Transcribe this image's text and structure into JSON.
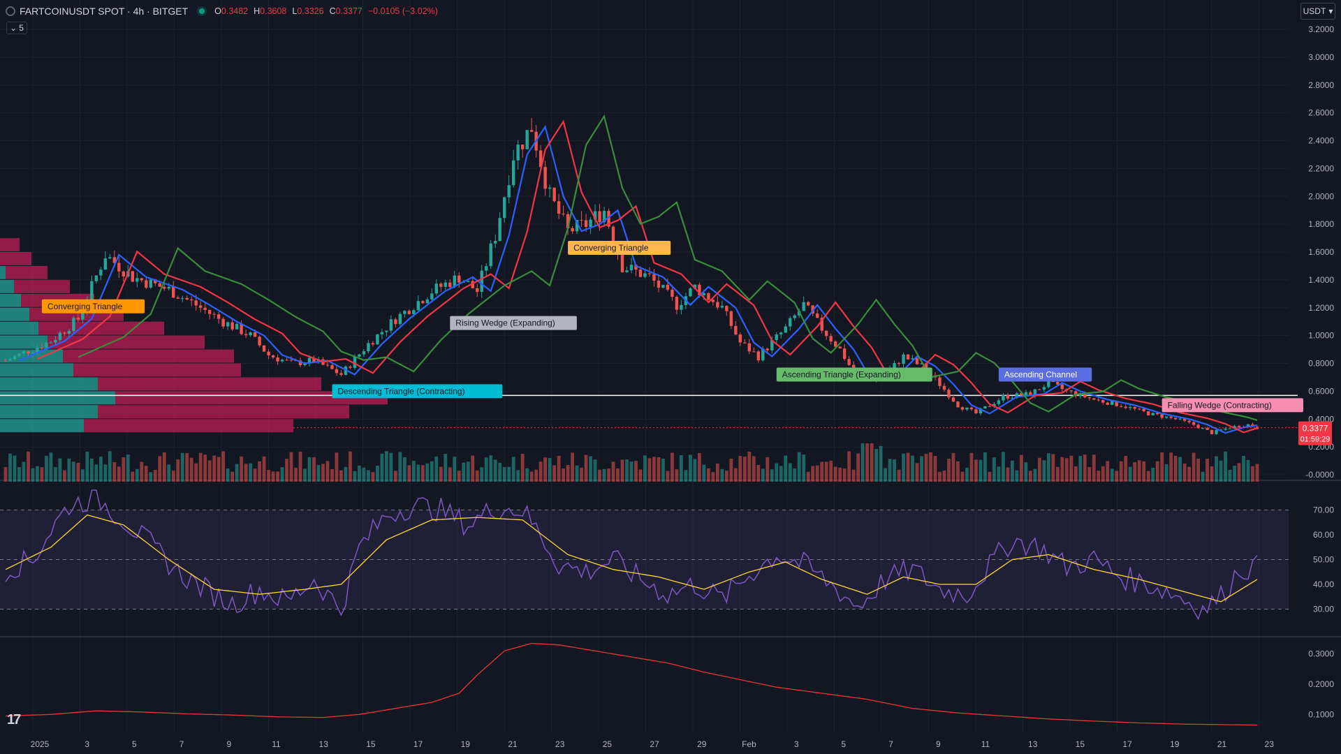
{
  "header": {
    "symbol": "FARTCOINUSDT SPOT · 4h · BITGET",
    "ohlc": {
      "o_label": "O",
      "o": "0.3482",
      "h_label": "H",
      "h": "0.3608",
      "l_label": "L",
      "l": "0.3326",
      "c_label": "C",
      "c": "0.3377",
      "change": "−0.0105 (−3.02%)"
    },
    "collapse_count": "5"
  },
  "currency": "USDT",
  "price_badge": {
    "price": "0.3377",
    "countdown": "01:59:29"
  },
  "colors": {
    "up": "#26a69a",
    "down": "#ef5350",
    "ma_fast": "#2962ff",
    "ma_mid": "#f23645",
    "ma_slow": "#388e3c",
    "rsi": "#7e57c2",
    "rsi_ma": "#fdd835",
    "vp_up": "#26a69a",
    "vp_down": "#e91e63"
  },
  "chart_data": [
    {
      "type": "candlestick",
      "panel": "price",
      "ylim": [
        0,
        3.2
      ],
      "yticks": [
        "3.2000",
        "3.0000",
        "2.8000",
        "2.6000",
        "2.4000",
        "2.2000",
        "2.0000",
        "1.8000",
        "1.6000",
        "1.4000",
        "1.2000",
        "1.0000",
        "0.8000",
        "0.6000",
        "0.4000",
        "0.2000",
        "-0.0000"
      ],
      "ytick_values": [
        3.2,
        3.0,
        2.8,
        2.6,
        2.4,
        2.2,
        2.0,
        1.8,
        1.6,
        1.4,
        1.2,
        1.0,
        0.8,
        0.6,
        0.4,
        0.2,
        0.0
      ],
      "xticks": [
        "2025",
        "3",
        "5",
        "7",
        "9",
        "11",
        "13",
        "15",
        "17",
        "19",
        "21",
        "23",
        "25",
        "27",
        "29",
        "Feb",
        "3",
        "5",
        "7",
        "9",
        "11",
        "13",
        "15",
        "17",
        "19",
        "21",
        "23"
      ],
      "price_series": [
        {
          "x": 0,
          "y": 0.82
        },
        {
          "x": 10,
          "y": 0.96
        },
        {
          "x": 16,
          "y": 1.12
        },
        {
          "x": 22,
          "y": 1.58
        },
        {
          "x": 28,
          "y": 1.42
        },
        {
          "x": 36,
          "y": 1.33
        },
        {
          "x": 42,
          "y": 1.22
        },
        {
          "x": 48,
          "y": 1.1
        },
        {
          "x": 54,
          "y": 1.0
        },
        {
          "x": 58,
          "y": 0.86
        },
        {
          "x": 63,
          "y": 0.8
        },
        {
          "x": 68,
          "y": 0.82
        },
        {
          "x": 74,
          "y": 0.72
        },
        {
          "x": 80,
          "y": 0.94
        },
        {
          "x": 86,
          "y": 1.12
        },
        {
          "x": 94,
          "y": 1.32
        },
        {
          "x": 100,
          "y": 1.42
        },
        {
          "x": 104,
          "y": 1.32
        },
        {
          "x": 108,
          "y": 1.72
        },
        {
          "x": 112,
          "y": 2.3
        },
        {
          "x": 116,
          "y": 2.5
        },
        {
          "x": 120,
          "y": 2.0
        },
        {
          "x": 124,
          "y": 1.75
        },
        {
          "x": 128,
          "y": 1.8
        },
        {
          "x": 132,
          "y": 1.9
        },
        {
          "x": 136,
          "y": 1.5
        },
        {
          "x": 142,
          "y": 1.42
        },
        {
          "x": 148,
          "y": 1.22
        },
        {
          "x": 152,
          "y": 1.35
        },
        {
          "x": 158,
          "y": 1.2
        },
        {
          "x": 162,
          "y": 0.95
        },
        {
          "x": 166,
          "y": 0.85
        },
        {
          "x": 172,
          "y": 1.05
        },
        {
          "x": 176,
          "y": 1.22
        },
        {
          "x": 180,
          "y": 1.05
        },
        {
          "x": 184,
          "y": 0.9
        },
        {
          "x": 188,
          "y": 0.68
        },
        {
          "x": 194,
          "y": 0.72
        },
        {
          "x": 198,
          "y": 0.85
        },
        {
          "x": 202,
          "y": 0.78
        },
        {
          "x": 206,
          "y": 0.65
        },
        {
          "x": 210,
          "y": 0.5
        },
        {
          "x": 214,
          "y": 0.44
        },
        {
          "x": 220,
          "y": 0.56
        },
        {
          "x": 226,
          "y": 0.58
        },
        {
          "x": 230,
          "y": 0.66
        },
        {
          "x": 234,
          "y": 0.6
        },
        {
          "x": 240,
          "y": 0.54
        },
        {
          "x": 246,
          "y": 0.5
        },
        {
          "x": 252,
          "y": 0.44
        },
        {
          "x": 258,
          "y": 0.4
        },
        {
          "x": 262,
          "y": 0.36
        },
        {
          "x": 266,
          "y": 0.3
        },
        {
          "x": 270,
          "y": 0.34
        },
        {
          "x": 274,
          "y": 0.36
        },
        {
          "x": 276,
          "y": 0.3377
        }
      ],
      "moving_averages": [
        {
          "color": "#2962ff",
          "lag": 3
        },
        {
          "color": "#f23645",
          "lag": 7
        },
        {
          "color": "#388e3c",
          "lag": 16
        }
      ],
      "horizontal_line": 0.57,
      "current_price": 0.3377,
      "patterns": [
        {
          "label": "Converging Triangle",
          "bg": "#ff9800",
          "fg": "#131722",
          "x": 8,
          "y": 1.21
        },
        {
          "label": "Descending Triangle (Contracting)",
          "bg": "#00bcd4",
          "fg": "#131722",
          "x": 72,
          "y": 0.6
        },
        {
          "label": "Rising Wedge (Expanding)",
          "bg": "#b2b5be",
          "fg": "#131722",
          "x": 98,
          "y": 1.09
        },
        {
          "label": "Converging Triangle",
          "bg": "#ffb74d",
          "fg": "#131722",
          "x": 124,
          "y": 1.63
        },
        {
          "label": "Ascending Triangle (Expanding)",
          "bg": "#66bb6a",
          "fg": "#131722",
          "x": 170,
          "y": 0.72
        },
        {
          "label": "Ascending Channel",
          "bg": "#5b6ee1",
          "fg": "#ffffff",
          "x": 219,
          "y": 0.72
        },
        {
          "label": "Falling Wedge (Contracting)",
          "bg": "#f48fb1",
          "fg": "#131722",
          "x": 255,
          "y": 0.5
        }
      ],
      "volume_profile": [
        {
          "price": 1.65,
          "up": 0,
          "down": 28
        },
        {
          "price": 1.55,
          "up": 0,
          "down": 45
        },
        {
          "price": 1.45,
          "up": 8,
          "down": 60
        },
        {
          "price": 1.35,
          "up": 20,
          "down": 80
        },
        {
          "price": 1.25,
          "up": 30,
          "down": 105
        },
        {
          "price": 1.15,
          "up": 42,
          "down": 135
        },
        {
          "price": 1.05,
          "up": 55,
          "down": 180
        },
        {
          "price": 0.95,
          "up": 68,
          "down": 225
        },
        {
          "price": 0.85,
          "up": 90,
          "down": 245
        },
        {
          "price": 0.75,
          "up": 105,
          "down": 240
        },
        {
          "price": 0.65,
          "up": 140,
          "down": 320
        },
        {
          "price": 0.55,
          "up": 165,
          "down": 390
        },
        {
          "price": 0.45,
          "up": 140,
          "down": 360
        },
        {
          "price": 0.35,
          "up": 120,
          "down": 300
        }
      ],
      "volume": {
        "ylim": [
          0,
          1
        ]
      }
    },
    {
      "type": "line",
      "panel": "rsi",
      "ylim": [
        20,
        80
      ],
      "yticks": [
        "70.00",
        "60.00",
        "50.00",
        "40.00",
        "30.00"
      ],
      "ytick_values": [
        70,
        60,
        50,
        40,
        30
      ],
      "bands": [
        70,
        50,
        30
      ],
      "rsi": [
        {
          "x": 0,
          "y": 46
        },
        {
          "x": 6,
          "y": 50
        },
        {
          "x": 10,
          "y": 62
        },
        {
          "x": 14,
          "y": 72
        },
        {
          "x": 20,
          "y": 75
        },
        {
          "x": 26,
          "y": 66
        },
        {
          "x": 32,
          "y": 56
        },
        {
          "x": 38,
          "y": 45
        },
        {
          "x": 44,
          "y": 38
        },
        {
          "x": 50,
          "y": 32
        },
        {
          "x": 56,
          "y": 38
        },
        {
          "x": 62,
          "y": 33
        },
        {
          "x": 68,
          "y": 42
        },
        {
          "x": 74,
          "y": 30
        },
        {
          "x": 78,
          "y": 55
        },
        {
          "x": 84,
          "y": 68
        },
        {
          "x": 90,
          "y": 72
        },
        {
          "x": 96,
          "y": 70
        },
        {
          "x": 102,
          "y": 64
        },
        {
          "x": 108,
          "y": 71
        },
        {
          "x": 114,
          "y": 70
        },
        {
          "x": 118,
          "y": 60
        },
        {
          "x": 122,
          "y": 48
        },
        {
          "x": 128,
          "y": 45
        },
        {
          "x": 134,
          "y": 50
        },
        {
          "x": 140,
          "y": 42
        },
        {
          "x": 146,
          "y": 36
        },
        {
          "x": 152,
          "y": 40
        },
        {
          "x": 158,
          "y": 34
        },
        {
          "x": 164,
          "y": 44
        },
        {
          "x": 170,
          "y": 52
        },
        {
          "x": 176,
          "y": 48
        },
        {
          "x": 182,
          "y": 40
        },
        {
          "x": 188,
          "y": 31
        },
        {
          "x": 194,
          "y": 42
        },
        {
          "x": 200,
          "y": 46
        },
        {
          "x": 206,
          "y": 38
        },
        {
          "x": 212,
          "y": 36
        },
        {
          "x": 218,
          "y": 50
        },
        {
          "x": 222,
          "y": 58
        },
        {
          "x": 228,
          "y": 55
        },
        {
          "x": 234,
          "y": 47
        },
        {
          "x": 240,
          "y": 50
        },
        {
          "x": 246,
          "y": 43
        },
        {
          "x": 252,
          "y": 40
        },
        {
          "x": 258,
          "y": 36
        },
        {
          "x": 264,
          "y": 30
        },
        {
          "x": 268,
          "y": 35
        },
        {
          "x": 272,
          "y": 46
        },
        {
          "x": 276,
          "y": 47
        }
      ],
      "rsi_ma": [
        {
          "x": 0,
          "y": 46
        },
        {
          "x": 10,
          "y": 55
        },
        {
          "x": 18,
          "y": 68
        },
        {
          "x": 26,
          "y": 64
        },
        {
          "x": 36,
          "y": 50
        },
        {
          "x": 46,
          "y": 38
        },
        {
          "x": 56,
          "y": 36
        },
        {
          "x": 66,
          "y": 38
        },
        {
          "x": 74,
          "y": 40
        },
        {
          "x": 84,
          "y": 58
        },
        {
          "x": 94,
          "y": 66
        },
        {
          "x": 104,
          "y": 67
        },
        {
          "x": 114,
          "y": 66
        },
        {
          "x": 124,
          "y": 52
        },
        {
          "x": 134,
          "y": 46
        },
        {
          "x": 144,
          "y": 43
        },
        {
          "x": 154,
          "y": 38
        },
        {
          "x": 164,
          "y": 45
        },
        {
          "x": 172,
          "y": 49
        },
        {
          "x": 180,
          "y": 42
        },
        {
          "x": 190,
          "y": 36
        },
        {
          "x": 198,
          "y": 43
        },
        {
          "x": 206,
          "y": 40
        },
        {
          "x": 214,
          "y": 40
        },
        {
          "x": 222,
          "y": 50
        },
        {
          "x": 230,
          "y": 52
        },
        {
          "x": 240,
          "y": 46
        },
        {
          "x": 250,
          "y": 42
        },
        {
          "x": 260,
          "y": 37
        },
        {
          "x": 268,
          "y": 33
        },
        {
          "x": 276,
          "y": 42
        }
      ]
    },
    {
      "type": "line",
      "panel": "indicator",
      "ylim": [
        0.05,
        0.35
      ],
      "yticks": [
        "0.3000",
        "0.2000",
        "0.1000"
      ],
      "ytick_values": [
        0.3,
        0.2,
        0.1
      ],
      "series": [
        {
          "x": 0,
          "y": 0.095
        },
        {
          "x": 10,
          "y": 0.1
        },
        {
          "x": 20,
          "y": 0.112
        },
        {
          "x": 30,
          "y": 0.108
        },
        {
          "x": 40,
          "y": 0.102
        },
        {
          "x": 50,
          "y": 0.098
        },
        {
          "x": 60,
          "y": 0.092
        },
        {
          "x": 70,
          "y": 0.09
        },
        {
          "x": 78,
          "y": 0.1
        },
        {
          "x": 86,
          "y": 0.12
        },
        {
          "x": 94,
          "y": 0.14
        },
        {
          "x": 100,
          "y": 0.17
        },
        {
          "x": 104,
          "y": 0.23
        },
        {
          "x": 110,
          "y": 0.31
        },
        {
          "x": 116,
          "y": 0.335
        },
        {
          "x": 122,
          "y": 0.33
        },
        {
          "x": 130,
          "y": 0.31
        },
        {
          "x": 138,
          "y": 0.29
        },
        {
          "x": 146,
          "y": 0.27
        },
        {
          "x": 154,
          "y": 0.24
        },
        {
          "x": 162,
          "y": 0.215
        },
        {
          "x": 170,
          "y": 0.19
        },
        {
          "x": 180,
          "y": 0.17
        },
        {
          "x": 190,
          "y": 0.15
        },
        {
          "x": 200,
          "y": 0.12
        },
        {
          "x": 210,
          "y": 0.105
        },
        {
          "x": 220,
          "y": 0.095
        },
        {
          "x": 230,
          "y": 0.085
        },
        {
          "x": 240,
          "y": 0.078
        },
        {
          "x": 250,
          "y": 0.072
        },
        {
          "x": 260,
          "y": 0.068
        },
        {
          "x": 270,
          "y": 0.066
        },
        {
          "x": 276,
          "y": 0.065
        }
      ]
    }
  ]
}
